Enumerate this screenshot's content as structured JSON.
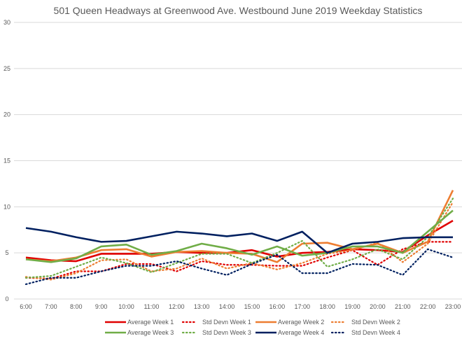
{
  "chart_data": {
    "type": "line",
    "title": "501 Queen Headways at Greenwood Ave. Westbound June 2019 Weekday Statistics",
    "xlabel": "",
    "ylabel": "",
    "ylim": [
      0,
      30
    ],
    "yticks": [
      0,
      5,
      10,
      15,
      20,
      25,
      30
    ],
    "grid": true,
    "legend": "bottom",
    "categories": [
      "6:00",
      "7:00",
      "8:00",
      "9:00",
      "10:00",
      "11:00",
      "12:00",
      "13:00",
      "14:00",
      "15:00",
      "16:00",
      "17:00",
      "18:00",
      "19:00",
      "20:00",
      "21:00",
      "22:00",
      "23:00"
    ],
    "series": [
      {
        "name": "Average Week 1",
        "color": "#e00000",
        "style": "solid",
        "values": [
          4.5,
          4.2,
          4.1,
          4.9,
          4.9,
          4.9,
          5.1,
          5.0,
          5.0,
          5.3,
          4.6,
          5.0,
          5.1,
          5.4,
          5.3,
          5.1,
          6.9,
          8.5
        ]
      },
      {
        "name": "Std Devn Week 1",
        "color": "#e00000",
        "style": "dotted",
        "values": [
          2.3,
          2.2,
          3.0,
          3.0,
          3.8,
          3.8,
          3.0,
          4.1,
          3.7,
          3.7,
          3.6,
          3.6,
          4.5,
          5.3,
          3.7,
          5.4,
          6.2,
          6.2
        ]
      },
      {
        "name": "Average Week 2",
        "color": "#ed7d31",
        "style": "solid",
        "values": [
          4.3,
          4.1,
          4.5,
          5.3,
          5.4,
          4.6,
          5.1,
          5.2,
          5.0,
          4.9,
          4.0,
          6.0,
          6.1,
          5.4,
          6.0,
          5.0,
          6.2,
          11.8
        ]
      },
      {
        "name": "Std Devn Week 2",
        "color": "#ed7d31",
        "style": "dotted",
        "values": [
          2.4,
          2.1,
          2.8,
          4.2,
          4.3,
          3.0,
          3.3,
          4.4,
          3.3,
          3.9,
          3.2,
          3.9,
          4.9,
          5.3,
          6.1,
          4.0,
          6.0,
          10.5
        ]
      },
      {
        "name": "Average Week 3",
        "color": "#70ad47",
        "style": "solid",
        "values": [
          4.3,
          4.0,
          4.4,
          5.7,
          5.9,
          4.8,
          5.2,
          6.0,
          5.5,
          4.8,
          5.7,
          4.7,
          5.0,
          5.7,
          5.7,
          5.0,
          7.3,
          9.6
        ]
      },
      {
        "name": "Std Devn Week 3",
        "color": "#70ad47",
        "style": "dotted",
        "values": [
          2.3,
          2.5,
          3.5,
          4.5,
          3.9,
          2.9,
          3.9,
          4.9,
          4.9,
          3.9,
          5.0,
          6.3,
          3.5,
          4.3,
          5.4,
          4.3,
          6.7,
          10.9
        ]
      },
      {
        "name": "Average Week 4",
        "color": "#002060",
        "style": "solid",
        "values": [
          7.7,
          7.3,
          6.7,
          6.2,
          6.3,
          6.8,
          7.3,
          7.1,
          6.8,
          7.1,
          6.3,
          7.3,
          5.0,
          6.0,
          6.2,
          6.6,
          6.7,
          6.7
        ]
      },
      {
        "name": "Std Devn Week 4",
        "color": "#002060",
        "style": "dotted",
        "values": [
          1.6,
          2.3,
          2.3,
          3.0,
          3.6,
          3.6,
          4.1,
          3.3,
          2.6,
          3.8,
          4.8,
          2.8,
          2.8,
          3.8,
          3.7,
          2.6,
          5.4,
          4.5
        ]
      }
    ]
  }
}
